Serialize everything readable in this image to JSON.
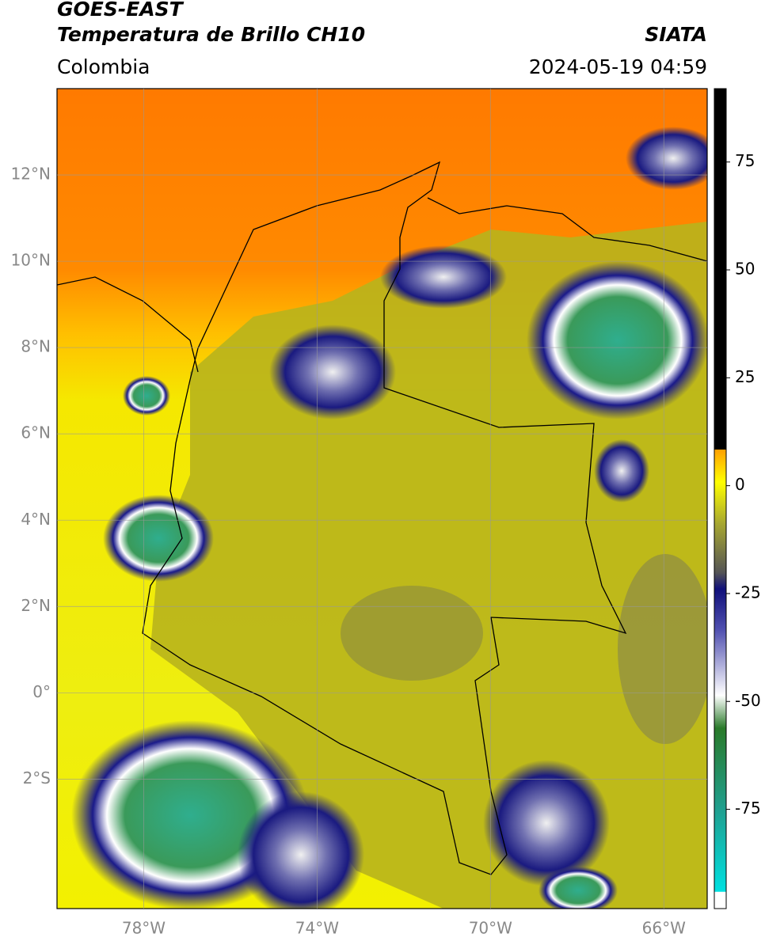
{
  "header": {
    "title": "GOES-EAST",
    "subtitle": "Temperatura de Brillo CH10",
    "source": "SIATA",
    "region": "Colombia",
    "datetime": "2024-05-19 04:59"
  },
  "map": {
    "lonlim": [
      -80,
      -65
    ],
    "latlim": [
      -5,
      14
    ],
    "lat_ticks": [
      {
        "value": 12,
        "label": "12°N"
      },
      {
        "value": 10,
        "label": "10°N"
      },
      {
        "value": 8,
        "label": "8°N"
      },
      {
        "value": 6,
        "label": "6°N"
      },
      {
        "value": 4,
        "label": "4°N"
      },
      {
        "value": 2,
        "label": "2°N"
      },
      {
        "value": 0,
        "label": "0°"
      },
      {
        "value": -2,
        "label": "2°S"
      }
    ],
    "lon_ticks": [
      {
        "value": -78,
        "label": "78°W"
      },
      {
        "value": -74,
        "label": "74°W"
      },
      {
        "value": -70,
        "label": "70°W"
      },
      {
        "value": -66,
        "label": "66°W"
      }
    ],
    "grid": true
  },
  "colorbar": {
    "lim": [
      -98,
      92
    ],
    "ticks": [
      75,
      50,
      25,
      0,
      -25,
      -50,
      -75
    ]
  }
}
